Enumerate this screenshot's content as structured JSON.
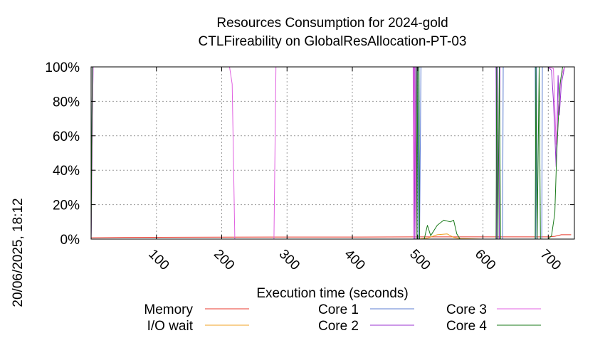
{
  "chart_data": {
    "type": "line",
    "title": "Resources Consumption for 2024-gold",
    "subtitle": "CTLFireability on GlobalResAllocation-PT-03",
    "xlabel": "Execution time (seconds)",
    "ylabel": "",
    "timestamp": "20/06/2025, 18:12",
    "xlim": [
      0,
      740
    ],
    "ylim": [
      0,
      100
    ],
    "x_ticks": [
      100,
      200,
      300,
      400,
      500,
      600,
      700
    ],
    "x_tick_labels": [
      "100",
      "200",
      "300",
      "400",
      "500",
      "600",
      "700"
    ],
    "y_ticks": [
      0,
      20,
      40,
      60,
      80,
      100
    ],
    "y_tick_labels": [
      "0%",
      "20%",
      "40%",
      "60%",
      "80%",
      "100%"
    ],
    "grid": true,
    "legend": "bottom",
    "series": [
      {
        "name": "Memory",
        "color": "#e8392c",
        "points": [
          [
            0,
            0.8
          ],
          [
            50,
            1.0
          ],
          [
            200,
            1.1
          ],
          [
            300,
            1.2
          ],
          [
            400,
            1.2
          ],
          [
            500,
            1.3
          ],
          [
            600,
            1.3
          ],
          [
            700,
            1.3
          ],
          [
            710,
            1.6
          ],
          [
            720,
            2.5
          ],
          [
            735,
            2.5
          ]
        ]
      },
      {
        "name": "I/O wait",
        "color": "#f0a020",
        "points": [
          [
            0,
            0
          ],
          [
            500,
            0
          ],
          [
            515,
            0.5
          ],
          [
            530,
            2.5
          ],
          [
            545,
            3
          ],
          [
            555,
            1
          ],
          [
            565,
            0.3
          ],
          [
            600,
            0
          ],
          [
            735,
            0
          ]
        ]
      },
      {
        "name": "Core 1",
        "color": "#5c7ed0",
        "points": [
          [
            0,
            0
          ],
          [
            2,
            100
          ],
          [
            500,
            100
          ],
          [
            501,
            0
          ],
          [
            502,
            100
          ],
          [
            503,
            0
          ],
          [
            505,
            100
          ],
          [
            620,
            100
          ],
          [
            621,
            0
          ],
          [
            622,
            100
          ],
          [
            623,
            0
          ],
          [
            630,
            0
          ],
          [
            631,
            100
          ],
          [
            680,
            100
          ],
          [
            681,
            0
          ],
          [
            682,
            100
          ],
          [
            683,
            0
          ],
          [
            690,
            0
          ],
          [
            691,
            100
          ],
          [
            735,
            100
          ]
        ]
      },
      {
        "name": "Core 2",
        "color": "#9b30d0",
        "points": [
          [
            0,
            0
          ],
          [
            3,
            100
          ],
          [
            494,
            100
          ],
          [
            495,
            0
          ],
          [
            496,
            100
          ],
          [
            497,
            0
          ],
          [
            499,
            100
          ],
          [
            620,
            100
          ],
          [
            621,
            0
          ],
          [
            622,
            100
          ],
          [
            623,
            0
          ],
          [
            625,
            0
          ],
          [
            626,
            100
          ],
          [
            700,
            100
          ],
          [
            705,
            98
          ],
          [
            708,
            80
          ],
          [
            712,
            42
          ],
          [
            715,
            95
          ],
          [
            717,
            72
          ],
          [
            720,
            90
          ],
          [
            725,
            100
          ],
          [
            735,
            100
          ]
        ]
      },
      {
        "name": "Core 3",
        "color": "#e060e0",
        "points": [
          [
            0,
            0
          ],
          [
            3,
            100
          ],
          [
            212,
            100
          ],
          [
            216,
            90
          ],
          [
            220,
            0
          ],
          [
            280,
            0
          ],
          [
            283,
            100
          ],
          [
            493,
            100
          ],
          [
            494,
            0
          ],
          [
            495,
            100
          ],
          [
            497,
            0
          ],
          [
            498,
            100
          ],
          [
            700,
            100
          ],
          [
            708,
            99
          ],
          [
            712,
            55
          ],
          [
            716,
            80
          ],
          [
            720,
            95
          ],
          [
            725,
            100
          ],
          [
            735,
            100
          ]
        ]
      },
      {
        "name": "Core 4",
        "color": "#1a7a1a",
        "points": [
          [
            0,
            0
          ],
          [
            2,
            100
          ],
          [
            498,
            100
          ],
          [
            499,
            0
          ],
          [
            500,
            100
          ],
          [
            502,
            100
          ],
          [
            503,
            0
          ],
          [
            510,
            0
          ],
          [
            515,
            8
          ],
          [
            520,
            2
          ],
          [
            530,
            8
          ],
          [
            540,
            11
          ],
          [
            550,
            10
          ],
          [
            555,
            11
          ],
          [
            560,
            3
          ],
          [
            565,
            0
          ],
          [
            620,
            0
          ],
          [
            621,
            100
          ],
          [
            623,
            0
          ],
          [
            625,
            100
          ],
          [
            627,
            0
          ],
          [
            630,
            0
          ],
          [
            680,
            0
          ],
          [
            681,
            100
          ],
          [
            683,
            0
          ],
          [
            686,
            100
          ],
          [
            688,
            0
          ],
          [
            700,
            0
          ],
          [
            705,
            2
          ],
          [
            710,
            15
          ],
          [
            713,
            50
          ],
          [
            718,
            90
          ],
          [
            722,
            100
          ],
          [
            735,
            100
          ]
        ]
      }
    ]
  }
}
